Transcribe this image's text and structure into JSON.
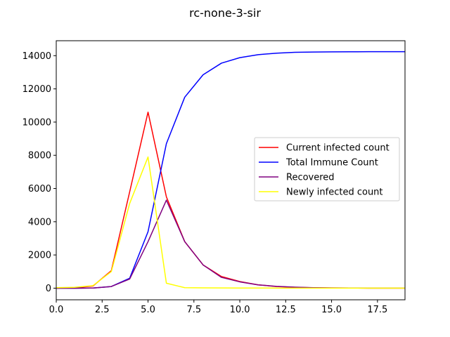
{
  "chart_data": {
    "type": "line",
    "title": "rc-none-3-sir",
    "xlabel": "",
    "ylabel": "",
    "xlim": [
      0,
      19
    ],
    "ylim": [
      -700,
      14900
    ],
    "xticks": [
      0,
      2.5,
      5,
      7.5,
      10,
      12.5,
      15,
      17.5
    ],
    "xtick_labels": [
      "0.0",
      "2.5",
      "5.0",
      "7.5",
      "10.0",
      "12.5",
      "15.0",
      "17.5"
    ],
    "yticks": [
      0,
      2000,
      4000,
      6000,
      8000,
      10000,
      12000,
      14000
    ],
    "ytick_labels": [
      "0",
      "2000",
      "4000",
      "6000",
      "8000",
      "10000",
      "12000",
      "14000"
    ],
    "grid": false,
    "legend_position": "center-right",
    "x": [
      0,
      1,
      2,
      3,
      4,
      5,
      6,
      7,
      8,
      9,
      10,
      11,
      12,
      13,
      14,
      15,
      16,
      17,
      18,
      19
    ],
    "series": [
      {
        "name": "Current infected count",
        "color": "#ff0000",
        "values": [
          0,
          20,
          130,
          1050,
          5800,
          10600,
          5500,
          2800,
          1400,
          700,
          400,
          200,
          100,
          50,
          25,
          15,
          10,
          5,
          3,
          2
        ]
      },
      {
        "name": "Total Immune Count",
        "color": "#0000ff",
        "values": [
          0,
          0,
          10,
          100,
          600,
          3400,
          8700,
          11500,
          12850,
          13550,
          13880,
          14060,
          14150,
          14200,
          14220,
          14230,
          14235,
          14238,
          14240,
          14240
        ]
      },
      {
        "name": "Recovered",
        "color": "#800080",
        "values": [
          0,
          0,
          10,
          100,
          550,
          2800,
          5300,
          2800,
          1400,
          650,
          380,
          200,
          110,
          60,
          30,
          15,
          8,
          4,
          2,
          1
        ]
      },
      {
        "name": "Newly infected count",
        "color": "#ffff00",
        "values": [
          30,
          50,
          150,
          1000,
          5100,
          7900,
          300,
          30,
          20,
          15,
          10,
          8,
          5,
          4,
          3,
          2,
          2,
          1,
          1,
          1
        ]
      }
    ]
  }
}
